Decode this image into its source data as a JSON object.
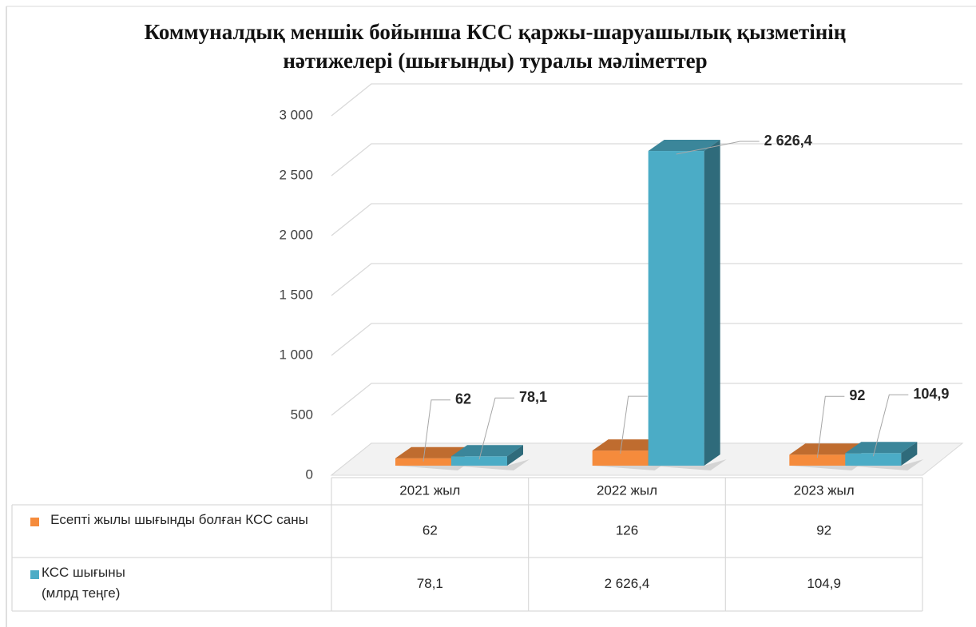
{
  "chart_data": {
    "type": "bar3d",
    "title": "Коммуналдық меншік бойынша КСС қаржы-шаруашылық қызметінің нәтижелері (шығынды) туралы мәліметтер",
    "categories": [
      "2021 жыл",
      "2022 жыл",
      "2023 жыл"
    ],
    "series": [
      {
        "name": "Есепті жылы шығынды болған КСС саны",
        "color": "#f58b3c",
        "values": [
          62,
          126,
          92
        ]
      },
      {
        "name": "КСС шығыны (млрд теңге)",
        "color": "#4bacc6",
        "values": [
          78.1,
          2626.4,
          104.9
        ],
        "value_labels": [
          "78,1",
          "2 626,4",
          "104,9"
        ]
      }
    ],
    "ylim": [
      0,
      3000
    ],
    "yticks": [
      0,
      500,
      {
        "value": 1000,
        "label": "1 000"
      },
      {
        "value": 1500,
        "label": "1 500"
      },
      {
        "value": 2000,
        "label": "2 000"
      },
      {
        "value": 2500,
        "label": "2 500"
      },
      {
        "value": 3000,
        "label": "3 000"
      }
    ],
    "grid": true,
    "data_table": true
  }
}
